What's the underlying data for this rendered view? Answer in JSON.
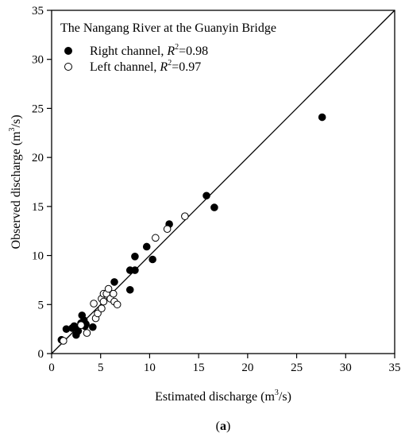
{
  "chart_data": {
    "type": "scatter",
    "title": "The Nangang River at the Guanyin Bridge",
    "panel_label": {
      "open": "(",
      "letter": "a",
      "close": ")"
    },
    "xlabel": {
      "before": "Estimated discharge (m",
      "sup": "3",
      "after": "/s)"
    },
    "ylabel": {
      "before": "Observed discharge (m",
      "sup": "3",
      "after": "/s)"
    },
    "xlim": [
      0,
      35
    ],
    "ylim": [
      0,
      35
    ],
    "xticks": [
      "0",
      "5",
      "10",
      "15",
      "20",
      "25",
      "30",
      "35"
    ],
    "yticks": [
      "0",
      "5",
      "10",
      "15",
      "20",
      "25",
      "30",
      "35"
    ],
    "grid": false,
    "legend_position": "top-left",
    "reference_line": {
      "type": "1:1",
      "from": [
        0,
        0
      ],
      "to": [
        35,
        35
      ]
    },
    "series": [
      {
        "name": "Right channel",
        "r2_label": {
          "pre": "Right channel, ",
          "r": "R",
          "sup": "2",
          "post": "=0.98"
        },
        "marker": "filled-circle",
        "color": "#000000",
        "points": [
          [
            1.0,
            1.4
          ],
          [
            1.5,
            2.5
          ],
          [
            2.1,
            2.6
          ],
          [
            2.3,
            2.8
          ],
          [
            2.5,
            1.9
          ],
          [
            2.7,
            2.3
          ],
          [
            3.0,
            3.1
          ],
          [
            3.1,
            3.9
          ],
          [
            3.3,
            3.4
          ],
          [
            3.4,
            2.8
          ],
          [
            3.5,
            3.0
          ],
          [
            4.2,
            2.7
          ],
          [
            6.4,
            7.3
          ],
          [
            8.0,
            6.5
          ],
          [
            8.0,
            8.5
          ],
          [
            8.5,
            9.9
          ],
          [
            8.5,
            8.5
          ],
          [
            9.7,
            10.9
          ],
          [
            10.3,
            9.6
          ],
          [
            12.0,
            13.2
          ],
          [
            15.8,
            16.1
          ],
          [
            16.6,
            14.9
          ],
          [
            27.6,
            24.1
          ]
        ]
      },
      {
        "name": "Left channel",
        "r2_label": {
          "pre": "Left channel, ",
          "r": "R",
          "sup": "2",
          "post": "=0.97"
        },
        "marker": "open-circle",
        "color": "#000000",
        "points": [
          [
            1.2,
            1.3
          ],
          [
            3.0,
            2.9
          ],
          [
            3.6,
            2.1
          ],
          [
            4.3,
            5.1
          ],
          [
            4.5,
            3.6
          ],
          [
            4.7,
            4.1
          ],
          [
            5.1,
            4.6
          ],
          [
            5.1,
            5.6
          ],
          [
            5.3,
            5.3
          ],
          [
            5.3,
            6.1
          ],
          [
            5.6,
            6.1
          ],
          [
            5.8,
            6.6
          ],
          [
            6.0,
            5.6
          ],
          [
            6.3,
            6.1
          ],
          [
            6.4,
            5.3
          ],
          [
            6.7,
            5.0
          ],
          [
            10.6,
            11.8
          ],
          [
            11.8,
            12.7
          ],
          [
            13.6,
            14.0
          ]
        ]
      }
    ]
  }
}
